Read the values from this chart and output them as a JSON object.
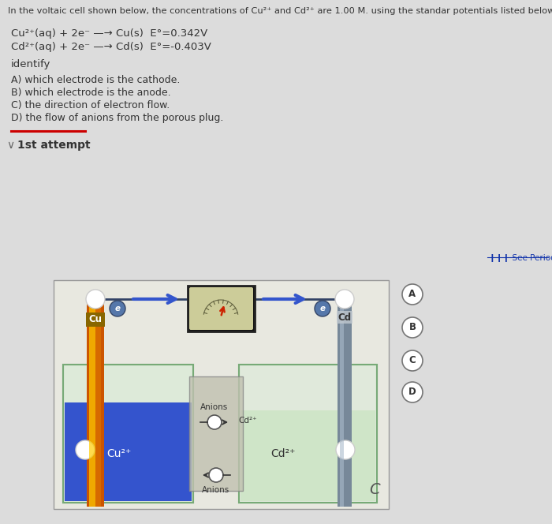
{
  "bg_color": "#dcdcdc",
  "title_line1": "In the voltaic cell shown below, the concentrations of Cu²⁺ and Cd²⁺ are 1.00 M. using the standar potentials listed below,",
  "eq1": "Cu²⁺(aq) + 2e⁻ —→ Cu(s)  E°=0.342V",
  "eq2": "Cd²⁺(aq) + 2e⁻ —→ Cd(s)  E°=-0.403V",
  "identify": "identify",
  "questions": [
    "A) which electrode is the cathode.",
    "B) which electrode is the anode.",
    "C) the direction of electron flow.",
    "D) the flow of anions from the porous plug."
  ],
  "attempt": "1st attempt",
  "periodic": "See Periodic Table",
  "text_color": "#333333",
  "wire_color": "#4466aa",
  "wire_dark": "#333366",
  "arrow_blue": "#3355cc",
  "cu_orange": "#cc5500",
  "cu_gold": "#dd8800",
  "cu_yellow": "#ffcc00",
  "cd_gray": "#778899",
  "cd_light": "#99aaaa",
  "beaker_glass": "#aaccaa",
  "left_solution": "#2244dd",
  "right_solution": "#b8d8b0",
  "plug_color": "#c0c0b0",
  "voltm_outer": "#222222",
  "voltm_inner": "#bbbb99",
  "voltm_scale": "#ccccaa",
  "needle_color": "#cc2200",
  "circle_bg": "#ffffff",
  "circle_border": "#888888",
  "answer_border": "#777777"
}
